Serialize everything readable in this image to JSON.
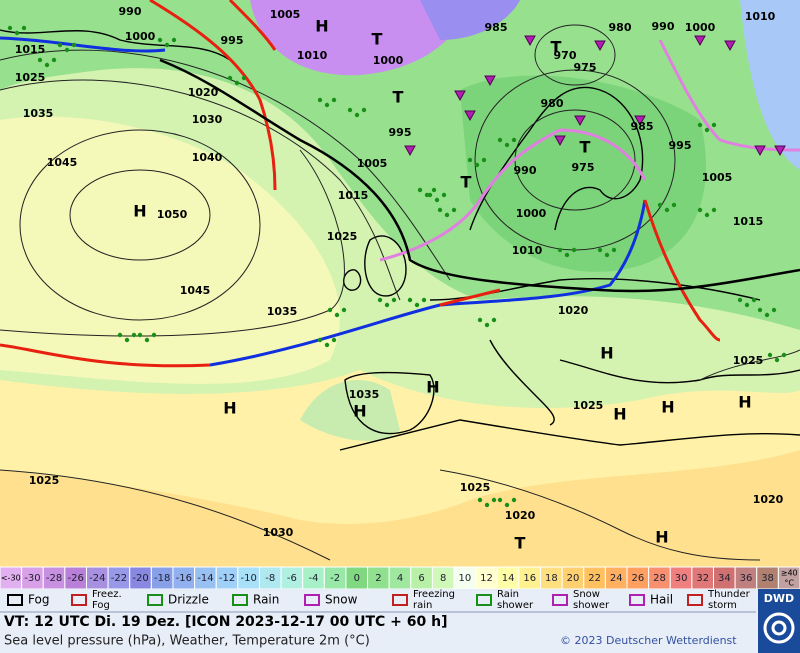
{
  "map": {
    "isobar_labels": [
      990,
      1000,
      995,
      1005,
      1015,
      1010,
      1025,
      1020,
      1035,
      1030,
      1045,
      1040,
      1050,
      1015,
      1025,
      1045,
      1035,
      1005,
      995,
      1000,
      985,
      980,
      990,
      1000,
      1010,
      975,
      970,
      980,
      985,
      995,
      990,
      975,
      1005,
      1015,
      1000,
      1010,
      1020,
      1025,
      1025,
      1035,
      1025,
      1025,
      1020,
      1030,
      1020
    ],
    "highs": [
      "H",
      "H",
      "H",
      "H",
      "H",
      "H",
      "H",
      "H",
      "H",
      "H"
    ],
    "lows": [
      "T",
      "T",
      "T",
      "T",
      "T",
      "T"
    ]
  },
  "temperature_scale": {
    "low_label": "<-30",
    "values": [
      -30,
      -28,
      -26,
      -24,
      -22,
      -20,
      -18,
      -16,
      -14,
      -12,
      -10,
      -8,
      -6,
      -4,
      -2,
      0,
      2,
      4,
      6,
      8,
      10,
      12,
      14,
      16,
      18,
      20,
      22,
      24,
      26,
      28,
      30,
      32,
      34,
      36,
      38
    ],
    "high_label": "≥40",
    "unit": "°C",
    "colors": [
      "#d8a0e6",
      "#c890e0",
      "#b880d8",
      "#a890e0",
      "#9898e8",
      "#8888e0",
      "#88a0e8",
      "#90b0f0",
      "#98c0f0",
      "#a0d0f8",
      "#a8e0f8",
      "#b0e8f0",
      "#b0f0e0",
      "#a8f0c8",
      "#98e8a8",
      "#80d880",
      "#90e090",
      "#a0e8a0",
      "#b8f0a8",
      "#d0f8b8",
      "#f4fff0",
      "#ffffd0",
      "#ffffa8",
      "#fff090",
      "#ffe080",
      "#ffd070",
      "#ffc060",
      "#ffb060",
      "#ffa060",
      "#f89070",
      "#f08080",
      "#e07878",
      "#d07070",
      "#c08080",
      "#b08070"
    ],
    "low_color": "#e0b0f0",
    "high_color": "#c0a0a0"
  },
  "legend": [
    {
      "label": [
        "Fog"
      ]
    },
    {
      "label": [
        "Freez.",
        "Fog"
      ]
    },
    {
      "label": [
        "Drizzle"
      ]
    },
    {
      "label": [
        "Rain"
      ]
    },
    {
      "label": [
        "Snow"
      ]
    },
    {
      "label": [
        "Freezing",
        "rain"
      ]
    },
    {
      "label": [
        "Rain",
        "shower"
      ]
    },
    {
      "label": [
        "Snow",
        "shower"
      ]
    },
    {
      "label": [
        "Hail"
      ]
    },
    {
      "label": [
        "Thunder",
        "storm"
      ]
    }
  ],
  "footer": {
    "valid_time": "VT: 12 UTC Di.  19 Dez. [ICON 2023-12-17  00 UTC + 60 h]",
    "description": "Sea level pressure (hPa), Weather, Temperature 2m (°C)",
    "copyright": "© 2023 Deutscher Wetterdienst",
    "logo": "DWD"
  }
}
